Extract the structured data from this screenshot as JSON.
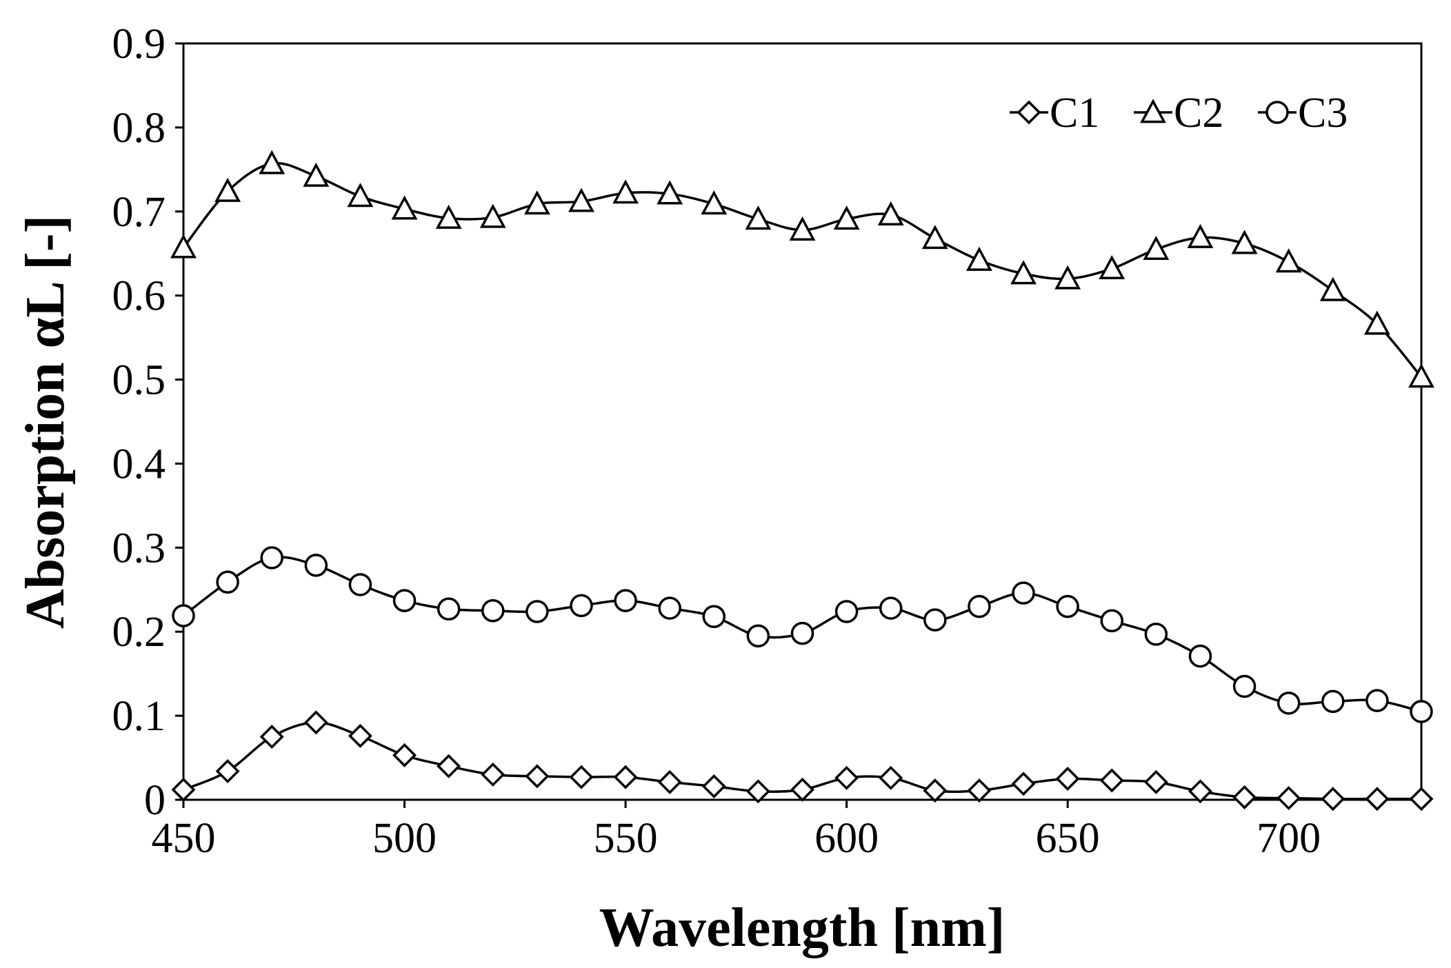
{
  "chart_data": {
    "type": "line",
    "title": "",
    "xlabel": "Wavelength [nm]",
    "ylabel": "Absorption αL [-]",
    "xlim": [
      450,
      730
    ],
    "ylim": [
      0,
      0.9
    ],
    "xticks": [
      450,
      500,
      550,
      600,
      650,
      700
    ],
    "xtick_labels": [
      "450",
      "500",
      "550",
      "600",
      "650",
      "700"
    ],
    "yticks": [
      0,
      0.1,
      0.2,
      0.3,
      0.4,
      0.5,
      0.6,
      0.7,
      0.8,
      0.9
    ],
    "ytick_labels": [
      "0",
      "0.1",
      "0.2",
      "0.3",
      "0.4",
      "0.5",
      "0.6",
      "0.7",
      "0.8",
      "0.9"
    ],
    "grid": false,
    "legend_position": "top-right",
    "x": [
      450,
      460,
      470,
      480,
      490,
      500,
      510,
      520,
      530,
      540,
      550,
      560,
      570,
      580,
      590,
      600,
      610,
      620,
      630,
      640,
      650,
      660,
      670,
      680,
      690,
      700,
      710,
      720,
      730
    ],
    "series": [
      {
        "name": "C1",
        "marker": "diamond",
        "values": [
          0.012,
          0.034,
          0.075,
          0.092,
          0.076,
          0.053,
          0.04,
          0.03,
          0.028,
          0.027,
          0.027,
          0.021,
          0.016,
          0.01,
          0.012,
          0.026,
          0.026,
          0.011,
          0.011,
          0.019,
          0.025,
          0.023,
          0.021,
          0.01,
          0.003,
          0.002,
          0.001,
          0.001,
          0.001
        ]
      },
      {
        "name": "C2",
        "marker": "triangle",
        "values": [
          0.657,
          0.724,
          0.757,
          0.742,
          0.718,
          0.703,
          0.692,
          0.693,
          0.709,
          0.712,
          0.722,
          0.721,
          0.709,
          0.691,
          0.678,
          0.691,
          0.696,
          0.668,
          0.642,
          0.626,
          0.62,
          0.632,
          0.655,
          0.669,
          0.662,
          0.64,
          0.606,
          0.566,
          0.503
        ]
      },
      {
        "name": "C3",
        "marker": "circle",
        "values": [
          0.219,
          0.259,
          0.288,
          0.279,
          0.256,
          0.237,
          0.227,
          0.225,
          0.224,
          0.231,
          0.237,
          0.228,
          0.218,
          0.195,
          0.198,
          0.224,
          0.228,
          0.214,
          0.23,
          0.246,
          0.23,
          0.213,
          0.197,
          0.171,
          0.135,
          0.115,
          0.117,
          0.118,
          0.105
        ]
      }
    ]
  },
  "colors": {
    "line": "#000000",
    "marker_fill": "#ffffff",
    "background": "#ffffff"
  }
}
